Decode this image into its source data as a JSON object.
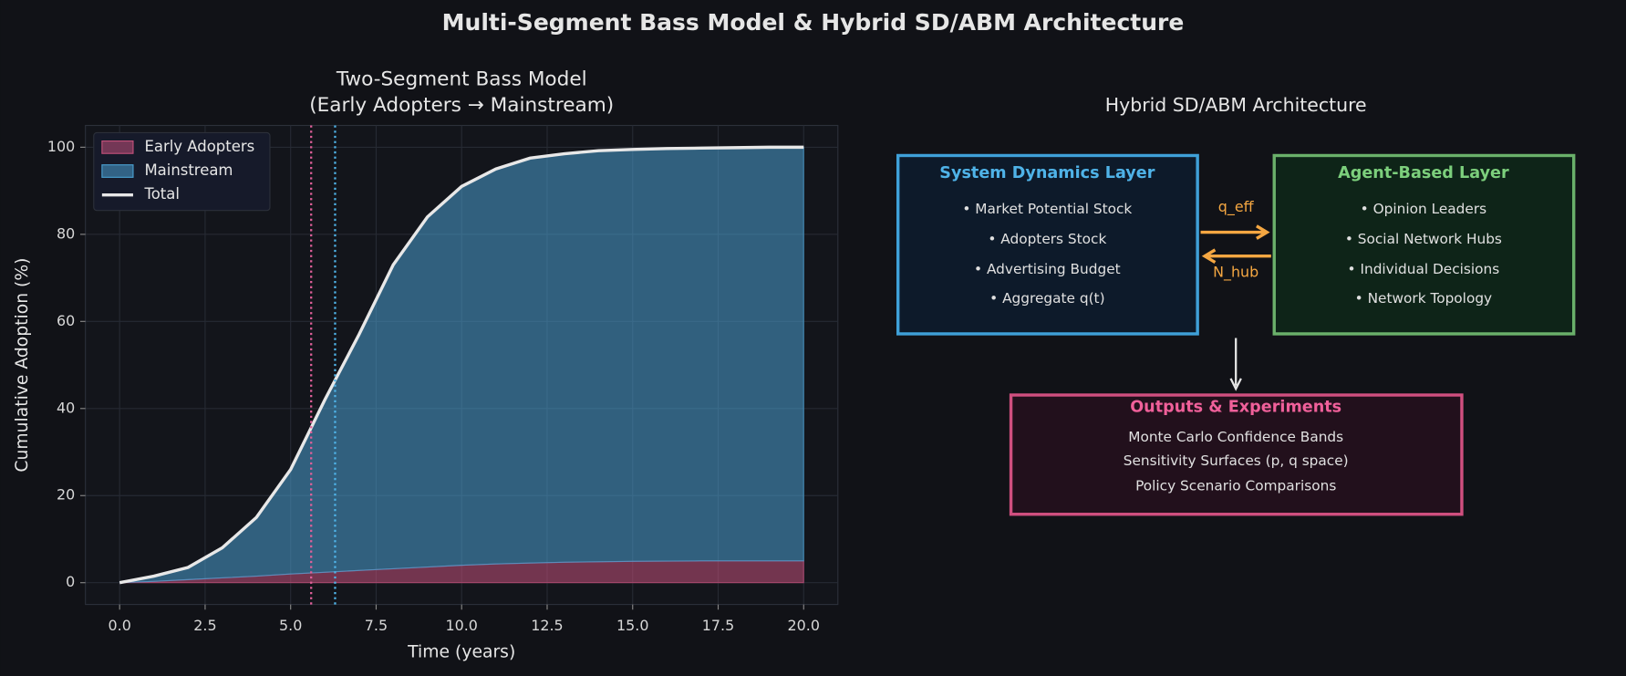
{
  "title": "Multi-Segment Bass Model & Hybrid SD/ABM Architecture",
  "chart_data": {
    "type": "stacked-area",
    "title": [
      "Two-Segment Bass Model",
      "(Early Adopters → Mainstream)"
    ],
    "xlabel": "Time (years)",
    "ylabel": "Cumulative Adoption (%)",
    "x": [
      0,
      1,
      2,
      3,
      4,
      5,
      6,
      7,
      8,
      9,
      10,
      11,
      12,
      13,
      14,
      15,
      16,
      17,
      18,
      19,
      20
    ],
    "series": [
      {
        "name": "Early Adopters",
        "color": "#c2507a",
        "values": [
          0,
          0.3,
          0.7,
          1.1,
          1.5,
          2.0,
          2.4,
          2.8,
          3.2,
          3.6,
          4.0,
          4.3,
          4.5,
          4.7,
          4.8,
          4.9,
          4.95,
          5,
          5,
          5,
          5
        ]
      },
      {
        "name": "Mainstream",
        "color": "#4a9fd0",
        "values": [
          0,
          1.2,
          2.8,
          6.9,
          13.5,
          24,
          39.6,
          54.2,
          69.8,
          80.4,
          87,
          90.7,
          93,
          93.8,
          94.4,
          94.6,
          94.75,
          94.8,
          94.9,
          95,
          95
        ]
      }
    ],
    "line": {
      "name": "Total",
      "color": "#e8e8e8",
      "values": [
        0,
        1.5,
        3.5,
        8,
        15,
        26,
        42,
        57,
        73,
        84,
        91,
        95,
        97.5,
        98.5,
        99.2,
        99.5,
        99.7,
        99.8,
        99.9,
        100,
        100
      ]
    },
    "vlines": [
      {
        "x": 5.6,
        "color": "#e0609a"
      },
      {
        "x": 6.3,
        "color": "#4fb3e8"
      }
    ],
    "xlim": [
      -1,
      21
    ],
    "ylim": [
      -5,
      105
    ],
    "xticks": [
      {
        "value": 0,
        "label": "0.0"
      },
      2.5,
      {
        "value": 5,
        "label": "5.0"
      },
      7.5,
      {
        "value": 10,
        "label": "10.0"
      },
      12.5,
      {
        "value": 15,
        "label": "15.0"
      },
      17.5,
      {
        "value": 20,
        "label": "20.0"
      }
    ],
    "yticks": [
      0,
      20,
      40,
      60,
      80,
      100
    ],
    "grid": true,
    "legend": "upper left"
  },
  "diagram": {
    "title": "Hybrid SD/ABM Architecture",
    "nodes": [
      {
        "title": "System Dynamics Layer",
        "items": [
          "• Market Potential Stock",
          "• Adopters Stock",
          "• Advertising Budget",
          "• Aggregate q(t)"
        ]
      },
      {
        "title": "Agent-Based Layer",
        "items": [
          "• Opinion Leaders",
          "• Social Network Hubs",
          "• Individual Decisions",
          "• Network Topology"
        ]
      },
      {
        "title": "Outputs & Experiments",
        "items": [
          "Monte Carlo Confidence Bands",
          "Sensitivity Surfaces (p, q space)",
          "Policy Scenario Comparisons"
        ]
      }
    ],
    "edges": [
      {
        "label": "q_eff"
      },
      {
        "label": "N_hub"
      }
    ]
  }
}
